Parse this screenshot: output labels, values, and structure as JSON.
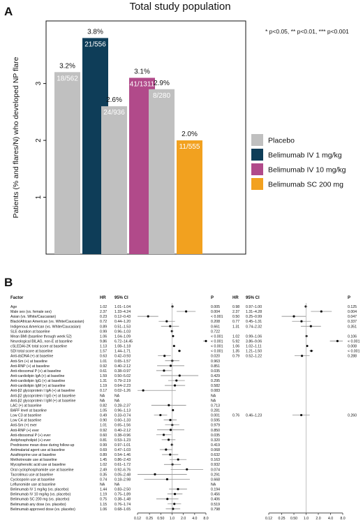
{
  "panel_a": {
    "panel_letter": "A",
    "chart_data": {
      "type": "bar",
      "title": "Total study population",
      "ylabel": "Patients (% and flares/N) who developed NP flare",
      "ylim": [
        0,
        4.1
      ],
      "yticks": [
        1,
        2,
        3
      ],
      "significance_note": "* p<0.05, ** p<0.01, *** p<0.001",
      "legend_position": "right",
      "series": [
        {
          "name": "Placebo",
          "color": "#c0c0c0"
        },
        {
          "name": "Belimumab IV 1 mg/kg",
          "color": "#0e3d58"
        },
        {
          "name": "Belimumab IV 10 mg/kg",
          "color": "#b14a8a"
        },
        {
          "name": "Belimumab SC 200 mg",
          "color": "#f2a11f"
        }
      ],
      "bars": [
        {
          "group": 0,
          "series": 0,
          "value": 3.2,
          "label_pct": "3.2%",
          "label_n": "18/562"
        },
        {
          "group": 0,
          "series": 1,
          "value": 3.8,
          "label_pct": "3.8%",
          "label_n": "21/556"
        },
        {
          "group": 1,
          "series": 0,
          "value": 2.6,
          "label_pct": "2.6%",
          "label_n": "24/936"
        },
        {
          "group": 1,
          "series": 2,
          "value": 3.1,
          "label_pct": "3.1%",
          "label_n": "41/1311"
        },
        {
          "group": 2,
          "series": 0,
          "value": 2.9,
          "label_pct": "2.9%",
          "label_n": "8/280"
        },
        {
          "group": 2,
          "series": 3,
          "value": 2.0,
          "label_pct": "2.0%",
          "label_n": "11/555"
        }
      ]
    }
  },
  "panel_b": {
    "panel_letter": "B",
    "headers": {
      "factor": "Factor",
      "hr": "HR",
      "ci": "95% CI",
      "p": "P",
      "hr2": "HR",
      "ci2": "95% CI",
      "p2": "P"
    },
    "chart_data": {
      "type": "forest",
      "x_scale": "log",
      "reference_line": 1.0,
      "xticks_left": [
        "0.12",
        "0.25",
        "0.50",
        "1.0",
        "2.0",
        "4.0",
        "8.0"
      ],
      "xticks_right": [
        "0.12",
        "0.25",
        "0.50",
        "1.0",
        "2.0",
        "4.0",
        "8.0"
      ],
      "rows": [
        {
          "factor": "Age",
          "hr": "1.02",
          "ci": "1.01–1.04",
          "p": "0.005",
          "hr2": "0.98",
          "ci2": "0.97–1.00",
          "p2": "0.125"
        },
        {
          "factor": "Male sex (vs. female sex)",
          "hr": "2.37",
          "ci": "1.33–4.24",
          "p": "0.004",
          "hr2": "2.37",
          "ci2": "1.31–4.28",
          "p2": "0.004"
        },
        {
          "factor": "Asian (vs. White/Caucasian)",
          "hr": "0.23",
          "ci": "0.12–0.43",
          "p": "< 0.001",
          "hr2": "0.50",
          "ci2": "0.25–0.99",
          "p2": "0.047"
        },
        {
          "factor": "Black/African American (vs. White/Caucasian)",
          "hr": "0.72",
          "ci": "0.44–1.20",
          "p": "0.208",
          "hr2": "0.77",
          "ci2": "0.45–1.31",
          "p2": "0.337"
        },
        {
          "factor": "Indigenous American (vs. White/Caucasian)",
          "hr": "0.89",
          "ci": "0.51–1.53",
          "p": "0.661",
          "hr2": "1.31",
          "ci2": "0.74–2.32",
          "p2": "0.351"
        },
        {
          "factor": "SLE duration at baseline",
          "hr": "0.99",
          "ci": "0.96–1.03",
          "p": "0.722",
          "hr2": "",
          "ci2": "",
          "p2": ""
        },
        {
          "factor": "Mean BMI (baseline through week 52)",
          "hr": "1.06",
          "ci": "1.04–1.09",
          "p": "< 0.001",
          "hr2": "1.02",
          "ci2": "0.99–1.06",
          "p2": "0.106"
        },
        {
          "factor": "Neurological BILAG, non-E at baseline",
          "hr": "9.86",
          "ci": "6.72–14.45",
          "p": "< 0.001",
          "hr2": "5.92",
          "ci2": "3.86–9.06",
          "p2": "< 0.001"
        },
        {
          "factor": "cSLEDAI-2K total score at baseline",
          "hr": "1.13",
          "ci": "1.08–1.18",
          "p": "< 0.001",
          "hr2": "1.06",
          "ci2": "1.02–1.11",
          "p2": "0.008"
        },
        {
          "factor": "SDI total score at baseline",
          "hr": "1.57",
          "ci": "1.44–1.71",
          "p": "< 0.001",
          "hr2": "1.35",
          "ci2": "1.21–1.50",
          "p2": "< 0.001"
        },
        {
          "factor": "Anti-dsDNA (+) at baseline",
          "hr": "0.63",
          "ci": "0.42–0.93",
          "p": "0.020",
          "hr2": "0.79",
          "ci2": "0.52–1.22",
          "p2": "0.288"
        },
        {
          "factor": "Anti-Sm (+) at baseline",
          "hr": "1.01",
          "ci": "0.65–1.57",
          "p": "0.963",
          "hr2": "",
          "ci2": "",
          "p2": ""
        },
        {
          "factor": "Anti-RNP (+) at baseline",
          "hr": "0.92",
          "ci": "0.40–2.12",
          "p": "0.851",
          "hr2": "",
          "ci2": "",
          "p2": ""
        },
        {
          "factor": "Anti-ribosomal P (+) at baseline",
          "hr": "0.61",
          "ci": "0.38–0.97",
          "p": "0.035",
          "hr2": "",
          "ci2": "",
          "p2": ""
        },
        {
          "factor": "Anti-cardiolipin IgA (+) at baseline",
          "hr": "1.59",
          "ci": "0.50–5.02",
          "p": "0.429",
          "hr2": "",
          "ci2": "",
          "p2": ""
        },
        {
          "factor": "Anti-cardiolipin IgG (+) at baseline",
          "hr": "1.31",
          "ci": "0.79–2.19",
          "p": "0.295",
          "hr2": "",
          "ci2": "",
          "p2": ""
        },
        {
          "factor": "Anti-cardiolipin IgM (+) at baseline",
          "hr": "1.19",
          "ci": "0.64–2.23",
          "p": "0.582",
          "hr2": "",
          "ci2": "",
          "p2": ""
        },
        {
          "factor": "Anti-β2 glycoprotein I IgA (+) at baseline",
          "hr": "0.17",
          "ci": "0.02–1.26",
          "p": "0.083",
          "hr2": "",
          "ci2": "",
          "p2": ""
        },
        {
          "factor": "Anti-β2 glycoprotein I IgG (+) at baseline",
          "hr": "NA",
          "ci": "NA",
          "p": "NA",
          "hr2": "",
          "ci2": "",
          "p2": ""
        },
        {
          "factor": "Anti-β2 glycoprotein I IgM (+) at baseline",
          "hr": "NA",
          "ci": "NA",
          "p": "NA",
          "hr2": "",
          "ci2": "",
          "p2": ""
        },
        {
          "factor": "LAC (+) at baseline",
          "hr": "0.82",
          "ci": "0.28–2.37",
          "p": "0.713",
          "hr2": "",
          "ci2": "",
          "p2": ""
        },
        {
          "factor": "BAFF level at baseline",
          "hr": "1.05",
          "ci": "0.96–1.13",
          "p": "0.281",
          "hr2": "",
          "ci2": "",
          "p2": ""
        },
        {
          "factor": "Low C3 at baseline",
          "hr": "0.49",
          "ci": "0.33–0.74",
          "p": "0.001",
          "hr2": "0.76",
          "ci2": "0.46–1.23",
          "p2": "0.260"
        },
        {
          "factor": "Low C4 at baseline",
          "hr": "0.90",
          "ci": "0.60–1.33",
          "p": "0.595",
          "hr2": "",
          "ci2": "",
          "p2": ""
        },
        {
          "factor": "Anti-Sm (+) ever",
          "hr": "1.01",
          "ci": "0.65–1.56",
          "p": "0.979",
          "hr2": "",
          "ci2": "",
          "p2": ""
        },
        {
          "factor": "Anti-RNP (+) ever",
          "hr": "0.92",
          "ci": "0.40–2.12",
          "p": "0.850",
          "hr2": "",
          "ci2": "",
          "p2": ""
        },
        {
          "factor": "Anti-ribosomal P (+) ever",
          "hr": "0.60",
          "ci": "0.38–0.96",
          "p": "0.035",
          "hr2": "",
          "ci2": "",
          "p2": ""
        },
        {
          "factor": "Antiphospholipid (+) ever",
          "hr": "0.81",
          "ci": "0.53–1.23",
          "p": "0.320",
          "hr2": "",
          "ci2": "",
          "p2": ""
        },
        {
          "factor": "Prednisone mean dose during follow-up",
          "hr": "0.99",
          "ci": "0.97–1.01",
          "p": "0.419",
          "hr2": "",
          "ci2": "",
          "p2": ""
        },
        {
          "factor": "Antimalarial agent use at baseline",
          "hr": "0.69",
          "ci": "0.47–1.03",
          "p": "0.068",
          "hr2": "",
          "ci2": "",
          "p2": ""
        },
        {
          "factor": "Azathioprine use at baseline",
          "hr": "0.89",
          "ci": "0.54–1.46",
          "p": "0.632",
          "hr2": "",
          "ci2": "",
          "p2": ""
        },
        {
          "factor": "Methotrexate use at baseline",
          "hr": "1.45",
          "ci": "0.86–2.43",
          "p": "0.163",
          "hr2": "",
          "ci2": "",
          "p2": ""
        },
        {
          "factor": "Mycophenolic acid use at baseline",
          "hr": "1.02",
          "ci": "0.61–1.72",
          "p": "0.932",
          "hr2": "",
          "ci2": "",
          "p2": ""
        },
        {
          "factor": "Oral cyclophosphamide use at baseline",
          "hr": "2.49",
          "ci": "0.92–6.76",
          "p": "0.074",
          "hr2": "",
          "ci2": "",
          "p2": ""
        },
        {
          "factor": "Tacrolimus use at baseline",
          "hr": "0.35",
          "ci": "0.05–2.48",
          "p": "0.291",
          "hr2": "",
          "ci2": "",
          "p2": ""
        },
        {
          "factor": "Cyclosporin use at baseline",
          "hr": "0.74",
          "ci": "0.18–2.98",
          "p": "0.668",
          "hr2": "",
          "ci2": "",
          "p2": ""
        },
        {
          "factor": "Leflunomide use at baseline",
          "hr": "NA",
          "ci": "NA",
          "p": "NA",
          "hr2": "",
          "ci2": "",
          "p2": ""
        },
        {
          "factor": "Belimumab IV 1 mg/kg (vs. placebo)",
          "hr": "1.44",
          "ci": "0.83–2.50",
          "p": "0.194",
          "hr2": "",
          "ci2": "",
          "p2": ""
        },
        {
          "factor": "Belimumab IV 10 mg/kg (vs. placebo)",
          "hr": "1.19",
          "ci": "0.75–1.89",
          "p": "0.456",
          "hr2": "",
          "ci2": "",
          "p2": ""
        },
        {
          "factor": "Belimumab SC 200 mg (vs. placebo)",
          "hr": "0.75",
          "ci": "0.38–1.48",
          "p": "0.406",
          "hr2": "",
          "ci2": "",
          "p2": ""
        },
        {
          "factor": "Belimumab any dose (vs. placebo)",
          "hr": "1.15",
          "ci": "0.76–1.74",
          "p": "0.519",
          "hr2": "",
          "ci2": "",
          "p2": ""
        },
        {
          "factor": "Belimumab approved dose (vs. placebo)",
          "hr": "1.06",
          "ci": "0.68–1.65",
          "p": "0.798",
          "hr2": "",
          "ci2": "",
          "p2": ""
        }
      ]
    }
  }
}
